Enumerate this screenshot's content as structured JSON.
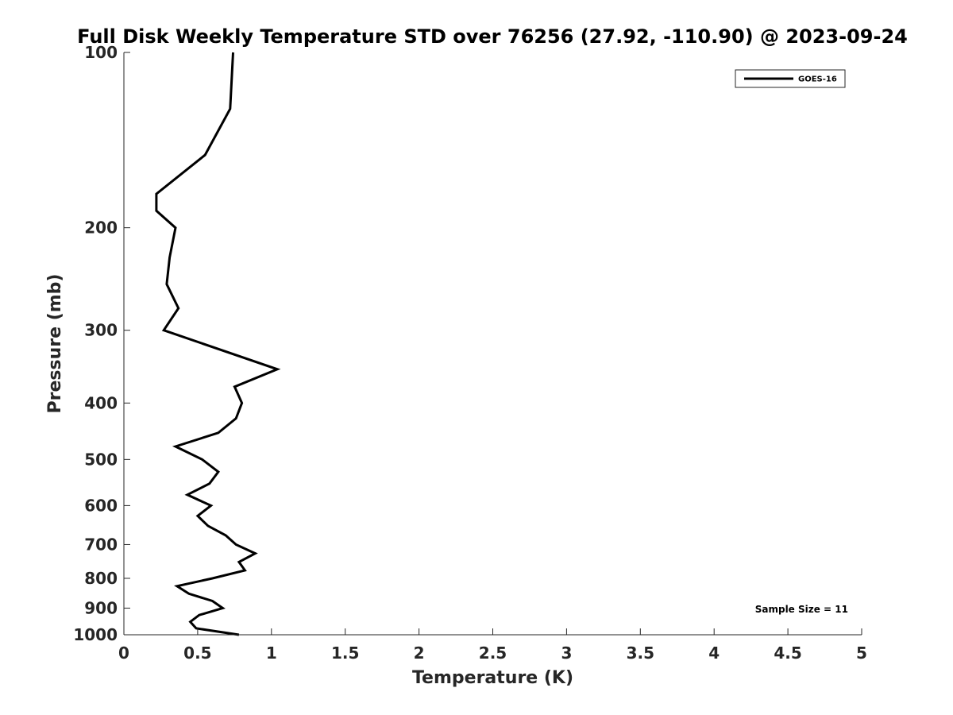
{
  "chart_data": {
    "type": "line",
    "title": "Full Disk Weekly Temperature STD over 76256 (27.92, -110.90) @ 2023-09-24",
    "xlabel": "Temperature (K)",
    "ylabel": "Pressure (mb)",
    "xlim": [
      0,
      5
    ],
    "ylim": [
      100,
      1000
    ],
    "y_scale": "log",
    "y_reversed": true,
    "x_ticks": [
      0,
      0.5,
      1,
      1.5,
      2,
      2.5,
      3,
      3.5,
      4,
      4.5,
      5
    ],
    "x_tick_labels": [
      "0",
      "0.5",
      "1",
      "1.5",
      "2",
      "2.5",
      "3",
      "3.5",
      "4",
      "4.5",
      "5"
    ],
    "y_ticks": [
      100,
      200,
      300,
      400,
      500,
      600,
      700,
      800,
      900,
      1000
    ],
    "y_tick_labels": [
      "100",
      "200",
      "300",
      "400",
      "500",
      "600",
      "700",
      "800",
      "900",
      "1000"
    ],
    "grid": false,
    "legend_position": "top-right",
    "legend": [
      "GOES-16"
    ],
    "annotation": "Sample Size = 11",
    "series": [
      {
        "name": "GOES-16",
        "color": "#000000",
        "points": [
          {
            "x": 0.74,
            "p": 100
          },
          {
            "x": 0.72,
            "p": 125
          },
          {
            "x": 0.55,
            "p": 150
          },
          {
            "x": 0.22,
            "p": 175
          },
          {
            "x": 0.22,
            "p": 187
          },
          {
            "x": 0.35,
            "p": 200
          },
          {
            "x": 0.31,
            "p": 225
          },
          {
            "x": 0.29,
            "p": 250
          },
          {
            "x": 0.37,
            "p": 275
          },
          {
            "x": 0.27,
            "p": 300
          },
          {
            "x": 1.04,
            "p": 350
          },
          {
            "x": 0.75,
            "p": 375
          },
          {
            "x": 0.8,
            "p": 400
          },
          {
            "x": 0.76,
            "p": 425
          },
          {
            "x": 0.64,
            "p": 450
          },
          {
            "x": 0.35,
            "p": 475
          },
          {
            "x": 0.53,
            "p": 500
          },
          {
            "x": 0.64,
            "p": 525
          },
          {
            "x": 0.58,
            "p": 550
          },
          {
            "x": 0.43,
            "p": 575
          },
          {
            "x": 0.59,
            "p": 600
          },
          {
            "x": 0.5,
            "p": 625
          },
          {
            "x": 0.57,
            "p": 650
          },
          {
            "x": 0.69,
            "p": 675
          },
          {
            "x": 0.76,
            "p": 700
          },
          {
            "x": 0.89,
            "p": 725
          },
          {
            "x": 0.78,
            "p": 750
          },
          {
            "x": 0.82,
            "p": 775
          },
          {
            "x": 0.6,
            "p": 800
          },
          {
            "x": 0.36,
            "p": 825
          },
          {
            "x": 0.44,
            "p": 850
          },
          {
            "x": 0.6,
            "p": 875
          },
          {
            "x": 0.67,
            "p": 900
          },
          {
            "x": 0.51,
            "p": 925
          },
          {
            "x": 0.45,
            "p": 950
          },
          {
            "x": 0.49,
            "p": 975
          },
          {
            "x": 0.78,
            "p": 1000
          }
        ]
      }
    ]
  }
}
